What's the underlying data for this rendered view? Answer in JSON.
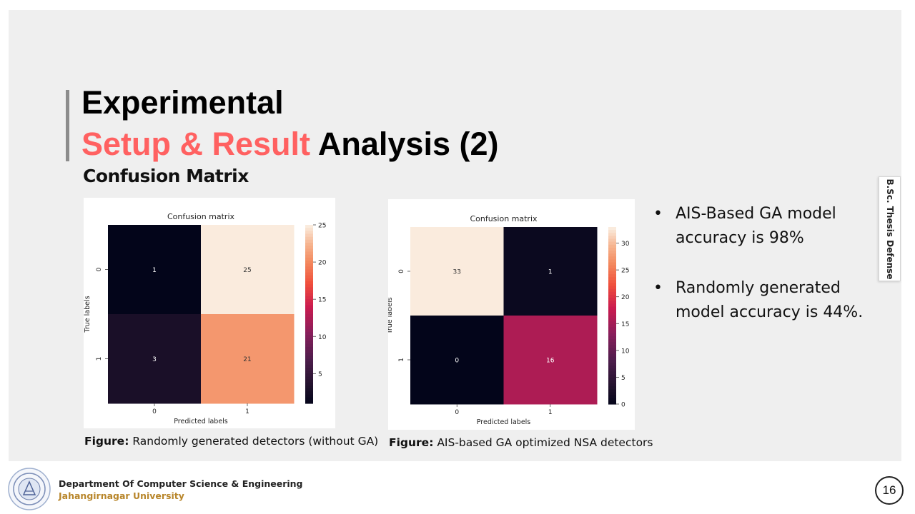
{
  "slide": {
    "title_line1": "Experimental",
    "title_line2_accent": "Setup & Result",
    "title_line2_rest": " Analysis (2)",
    "subtitle": "Confusion Matrix",
    "side_tab": "B.Sc. Thesis Defense",
    "page_number": "16"
  },
  "colors": {
    "accent": "#ff6161",
    "background": "#efefef",
    "footer_university": "#b8862b"
  },
  "captions": [
    {
      "label": "Figure:",
      "text": " Randomly generated detectors (without GA)"
    },
    {
      "label": "Figure:",
      "text": " AIS-based GA optimized NSA detectors"
    }
  ],
  "bullets": [
    "AIS-Based GA model accuracy is 98%",
    "Randomly generated model accuracy is 44%."
  ],
  "footer": {
    "department": "Department Of Computer Science & Engineering",
    "university": "Jahangirnagar University"
  },
  "chart_data": [
    {
      "type": "heatmap",
      "title": "Confusion matrix",
      "xlabel": "Predicted labels",
      "ylabel": "True labels",
      "x_categories": [
        "0",
        "1"
      ],
      "y_categories": [
        "0",
        "1"
      ],
      "values": [
        [
          1,
          25
        ],
        [
          3,
          21
        ]
      ],
      "colorbar_range": [
        1,
        25
      ],
      "colorbar_ticks": [
        5,
        10,
        15,
        20,
        25
      ],
      "colormap": "rocket"
    },
    {
      "type": "heatmap",
      "title": "Confusion matrix",
      "xlabel": "Predicted labels",
      "ylabel": "True labels",
      "x_categories": [
        "0",
        "1"
      ],
      "y_categories": [
        "0",
        "1"
      ],
      "values": [
        [
          33,
          1
        ],
        [
          0,
          16
        ]
      ],
      "colorbar_range": [
        0,
        33
      ],
      "colorbar_ticks": [
        0,
        5,
        10,
        15,
        20,
        25,
        30
      ],
      "colormap": "rocket"
    }
  ]
}
